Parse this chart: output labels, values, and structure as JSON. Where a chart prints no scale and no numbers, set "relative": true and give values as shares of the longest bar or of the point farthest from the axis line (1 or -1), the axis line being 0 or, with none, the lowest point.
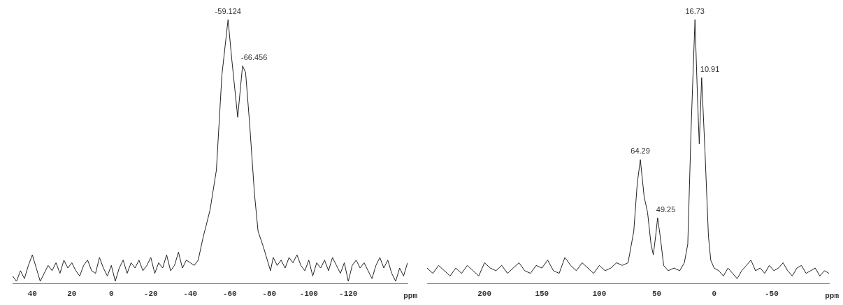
{
  "chart_data": [
    {
      "type": "line",
      "xlabel": "ppm",
      "relative": true,
      "xlim": [
        50,
        -150
      ],
      "xticks": [
        40,
        20,
        0,
        -20,
        -40,
        -60,
        -80,
        -100,
        -120
      ],
      "annotations": [
        {
          "text": "-59.124",
          "x": -59.124,
          "y": 1
        },
        {
          "text": "-66.456",
          "x": -66.456,
          "y": 0.825
        }
      ],
      "x": [
        50,
        48,
        46,
        44,
        42,
        40,
        38,
        36,
        34,
        32,
        30,
        28,
        26,
        24,
        22,
        20,
        18,
        16,
        14,
        12,
        10,
        8,
        6,
        4,
        2,
        0,
        -2,
        -4,
        -6,
        -8,
        -10,
        -12,
        -14,
        -16,
        -18,
        -20,
        -22,
        -24,
        -26,
        -28,
        -30,
        -32,
        -34,
        -36,
        -38,
        -40,
        -42,
        -44,
        -46.6,
        -48,
        -50,
        -53.2,
        -56,
        -59.124,
        -61,
        -64,
        -65.5,
        -66.456,
        -68,
        -70,
        -72.5,
        -74.3,
        -77,
        -80.6,
        -82,
        -84,
        -86,
        -88,
        -90,
        -92,
        -94,
        -96,
        -98,
        -100,
        -102,
        -104,
        -106,
        -108,
        -110,
        -112,
        -114,
        -116,
        -118,
        -120,
        -122,
        -124,
        -126,
        -128,
        -130,
        -132,
        -134,
        -136,
        -138,
        -140,
        -142,
        -144,
        -146,
        -148,
        -150
      ],
      "series": [
        {
          "color": "#222222",
          "values": [
            0.03,
            0.01,
            0.05,
            0.02,
            0.07,
            0.11,
            0.06,
            0.01,
            0.04,
            0.07,
            0.05,
            0.08,
            0.04,
            0.09,
            0.06,
            0.08,
            0.05,
            0.03,
            0.07,
            0.09,
            0.05,
            0.04,
            0.1,
            0.06,
            0.03,
            0.07,
            0.01,
            0.06,
            0.09,
            0.04,
            0.08,
            0.06,
            0.09,
            0.05,
            0.07,
            0.1,
            0.04,
            0.08,
            0.06,
            0.11,
            0.05,
            0.07,
            0.12,
            0.06,
            0.09,
            0.08,
            0.07,
            0.09,
            0.18,
            0.22,
            0.28,
            0.43,
            0.79,
            1,
            0.85,
            0.63,
            0.75,
            0.825,
            0.8,
            0.61,
            0.34,
            0.2,
            0.14,
            0.05,
            0.1,
            0.07,
            0.09,
            0.06,
            0.1,
            0.08,
            0.11,
            0.07,
            0.05,
            0.09,
            0.03,
            0.08,
            0.06,
            0.09,
            0.05,
            0.1,
            0.07,
            0.04,
            0.08,
            0.01,
            0.07,
            0.09,
            0.06,
            0.08,
            0.05,
            0.02,
            0.07,
            0.1,
            0.06,
            0.09,
            0.04,
            0.01,
            0.06,
            0.03,
            0.08
          ]
        }
      ]
    },
    {
      "type": "line",
      "xlabel": "ppm",
      "relative": true,
      "xlim": [
        250,
        -100
      ],
      "xticks": [
        200,
        150,
        100,
        50,
        0,
        -50
      ],
      "annotations": [
        {
          "text": "64.29",
          "x": 64.29,
          "y": 0.47
        },
        {
          "text": "49.25",
          "x": 49.25,
          "y": 0.25
        },
        {
          "text": "16.73",
          "x": 16.73,
          "y": 1
        },
        {
          "text": "10.91",
          "x": 10.91,
          "y": 0.78
        }
      ],
      "x": [
        250,
        245,
        240,
        235,
        230,
        225,
        220,
        215,
        210,
        205,
        200,
        195,
        190,
        185,
        180,
        175,
        170,
        165,
        160,
        155,
        150,
        145,
        140,
        135,
        130,
        125,
        120,
        115,
        110,
        105,
        100,
        95,
        90,
        85,
        80,
        75,
        70,
        67,
        64.29,
        61,
        58,
        55,
        53,
        51,
        49.25,
        47,
        44,
        40,
        35,
        30,
        26,
        23,
        20,
        16.73,
        14.5,
        13,
        10.91,
        8,
        5,
        3,
        0,
        -4,
        -8,
        -12,
        -16,
        -20,
        -24,
        -28,
        -32,
        -36,
        -40,
        -44,
        -48,
        -52,
        -56,
        -60,
        -64,
        -68,
        -72,
        -76,
        -80,
        -84,
        -88,
        -92,
        -96,
        -100
      ],
      "series": [
        {
          "color": "#222222",
          "values": [
            0.06,
            0.04,
            0.07,
            0.05,
            0.03,
            0.06,
            0.04,
            0.07,
            0.05,
            0.03,
            0.08,
            0.06,
            0.05,
            0.07,
            0.04,
            0.06,
            0.08,
            0.05,
            0.04,
            0.07,
            0.06,
            0.09,
            0.05,
            0.04,
            0.1,
            0.07,
            0.05,
            0.08,
            0.06,
            0.04,
            0.07,
            0.05,
            0.06,
            0.08,
            0.07,
            0.08,
            0.2,
            0.38,
            0.47,
            0.33,
            0.27,
            0.15,
            0.11,
            0.18,
            0.25,
            0.18,
            0.07,
            0.05,
            0.06,
            0.05,
            0.08,
            0.15,
            0.6,
            1,
            0.7,
            0.53,
            0.78,
            0.5,
            0.18,
            0.09,
            0.06,
            0.05,
            0.03,
            0.06,
            0.04,
            0.02,
            0.05,
            0.07,
            0.09,
            0.05,
            0.06,
            0.04,
            0.07,
            0.05,
            0.06,
            0.08,
            0.05,
            0.03,
            0.06,
            0.07,
            0.04,
            0.05,
            0.06,
            0.03,
            0.05,
            0.04
          ]
        }
      ]
    }
  ]
}
